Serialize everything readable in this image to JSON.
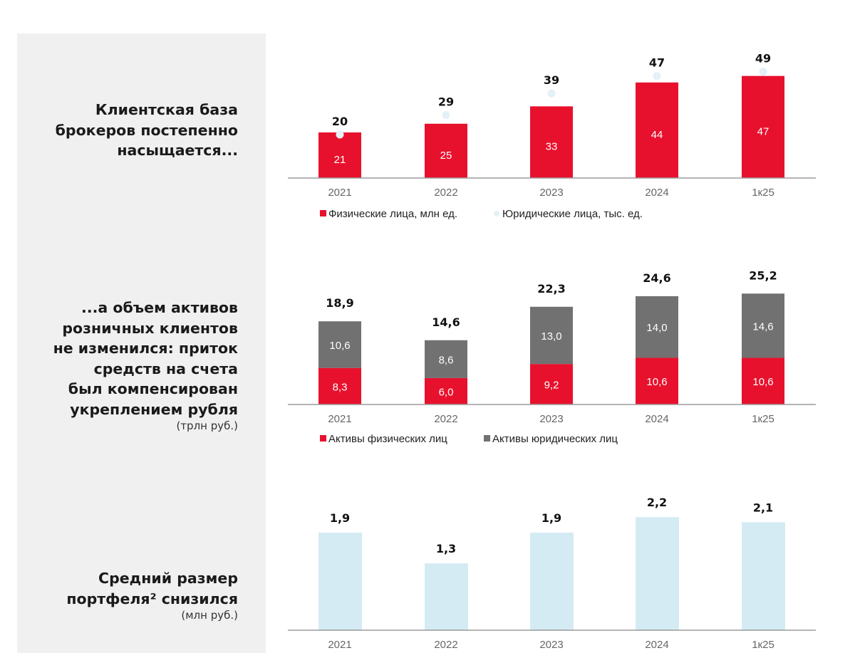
{
  "headings": {
    "h1": [
      "Клиентская база",
      "брокеров постепенно",
      "насыщается..."
    ],
    "h2": [
      "...а объем активов",
      "розничных клиентов",
      "не изменился: приток",
      "средств на счета",
      "был компенсирован",
      "укреплением рубля"
    ],
    "h2_unit": "(трлн руб.)",
    "h3": [
      "Средний размер",
      "портфеля² снизился"
    ],
    "h3_unit": "(млн руб.)"
  },
  "colors": {
    "red": "#e8112d",
    "gray": "#717171",
    "light_blue": "#d4ebf3",
    "dot": "#e4f1f7",
    "panel": "#f0f0f1",
    "axis": "#9b9b9b"
  },
  "chart_data": [
    {
      "type": "bar",
      "categories": [
        "2021",
        "2022",
        "2023",
        "2024",
        "1к25"
      ],
      "series": [
        {
          "name": "Физические лица, млн ед.",
          "values": [
            21,
            25,
            33,
            44,
            47
          ]
        },
        {
          "name": "Юридические лица, тыс. ед.",
          "values": [
            20,
            29,
            39,
            47,
            49
          ],
          "marker": "dot"
        }
      ],
      "legend": "bottom-left",
      "ylim": [
        0,
        55
      ]
    },
    {
      "type": "bar",
      "stacked": true,
      "categories": [
        "2021",
        "2022",
        "2023",
        "2024",
        "1к25"
      ],
      "series": [
        {
          "name": "Активы физических лиц",
          "values": [
            "8,3",
            "6,0",
            "9,2",
            "10,6",
            "10,6"
          ]
        },
        {
          "name": "Активы юридических лиц",
          "values": [
            "10,6",
            "8,6",
            "13,0",
            "14,0",
            "14,6"
          ]
        }
      ],
      "totals": [
        "18,9",
        "14,6",
        "22,3",
        "24,6",
        "25,2"
      ],
      "legend": "bottom-left",
      "ylim": [
        0,
        30
      ]
    },
    {
      "type": "bar",
      "categories": [
        "2021",
        "2022",
        "2023",
        "2024",
        "1к25"
      ],
      "values": [
        "1,9",
        "1,3",
        "1,9",
        "2,2",
        "2,1"
      ],
      "ylim": [
        0,
        2.8
      ]
    }
  ]
}
